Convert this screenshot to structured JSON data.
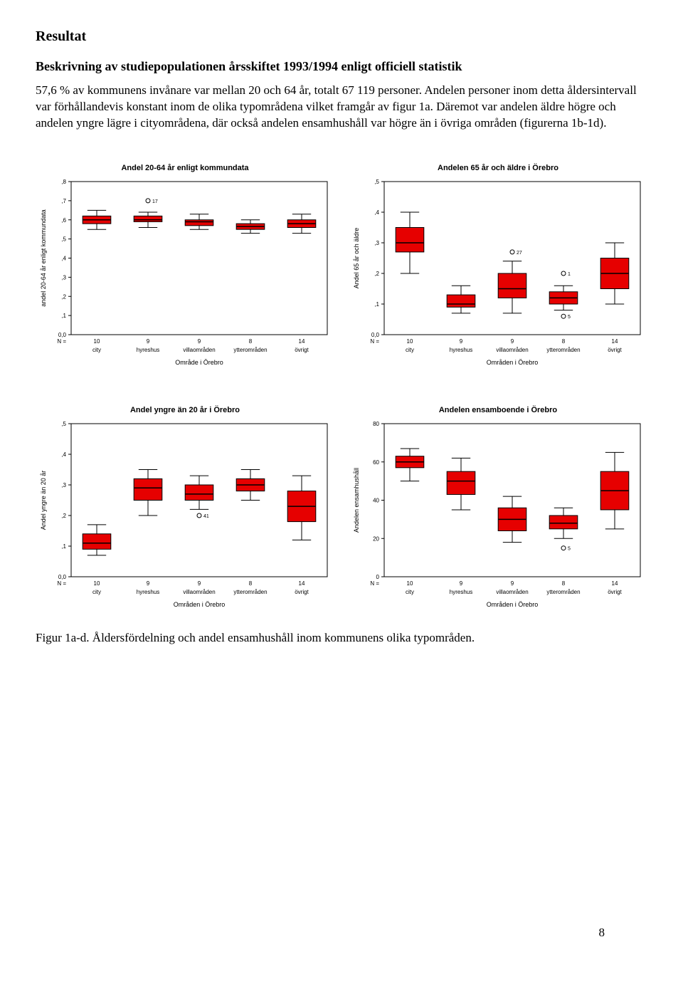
{
  "heading": "Resultat",
  "subheading": "Beskrivning av studiepopulationen årsskiftet 1993/1994 enligt officiell statistik",
  "para": "57,6 % av kommunens invånare var mellan 20 och 64 år, totalt 67 119 personer. Andelen personer inom detta åldersintervall var förhållandevis konstant inom de olika typområdena vilket framgår av figur 1a. Däremot var andelen äldre högre och andelen yngre lägre i cityområdena, där också andelen ensamhushåll var högre än i övriga områden (figurerna 1b-1d).",
  "figure_caption": "Figur 1a-d. Åldersfördelning och andel ensamhushåll inom kommunens olika typområden.",
  "page_number": "8",
  "chart_common": {
    "categories": [
      "city",
      "hyreshus",
      "villaområden",
      "ytterområden",
      "övrigt"
    ],
    "n_labels": [
      "10",
      "9",
      "9",
      "8",
      "14"
    ],
    "n_prefix": "N =",
    "box_fill": "#e60000",
    "box_stroke": "#000000",
    "median_color": "#000000",
    "whisker_color": "#000000",
    "outlier_stroke": "#000000",
    "outlier_fill": "none",
    "bg": "#ffffff",
    "axis_color": "#000000",
    "title_fontsize": 11,
    "label_fontsize": 9,
    "tick_fontsize": 8
  },
  "charts": [
    {
      "title": "Andel 20-64 år enligt kommundata",
      "x_axis_title": "Område i Örebro",
      "y_axis_title": "andel 20-64 år enligt kommundata",
      "y_min": 0.0,
      "y_max": 0.8,
      "y_ticks": [
        "0,0",
        ",1",
        ",2",
        ",3",
        ",4",
        ",5",
        ",6",
        ",7",
        ",8"
      ],
      "boxes": [
        {
          "min": 0.55,
          "q1": 0.58,
          "med": 0.6,
          "q3": 0.62,
          "max": 0.65
        },
        {
          "min": 0.56,
          "q1": 0.59,
          "med": 0.6,
          "q3": 0.62,
          "max": 0.64
        },
        {
          "min": 0.55,
          "q1": 0.57,
          "med": 0.59,
          "q3": 0.6,
          "max": 0.63
        },
        {
          "min": 0.53,
          "q1": 0.55,
          "med": 0.565,
          "q3": 0.58,
          "max": 0.6
        },
        {
          "min": 0.53,
          "q1": 0.56,
          "med": 0.58,
          "q3": 0.6,
          "max": 0.63
        }
      ],
      "outliers": [
        {
          "cat": 1,
          "y": 0.7,
          "label": "17"
        }
      ]
    },
    {
      "title": "Andelen 65 år och äldre i Örebro",
      "x_axis_title": "Områden i Örebro",
      "y_axis_title": "Andel 65 år och äldre",
      "y_min": 0.0,
      "y_max": 0.5,
      "y_ticks": [
        "0,0",
        ",1",
        ",2",
        ",3",
        ",4",
        ",5"
      ],
      "boxes": [
        {
          "min": 0.2,
          "q1": 0.27,
          "med": 0.3,
          "q3": 0.35,
          "max": 0.4
        },
        {
          "min": 0.07,
          "q1": 0.09,
          "med": 0.1,
          "q3": 0.13,
          "max": 0.16
        },
        {
          "min": 0.07,
          "q1": 0.12,
          "med": 0.15,
          "q3": 0.2,
          "max": 0.24
        },
        {
          "min": 0.08,
          "q1": 0.1,
          "med": 0.12,
          "q3": 0.14,
          "max": 0.16
        },
        {
          "min": 0.1,
          "q1": 0.15,
          "med": 0.2,
          "q3": 0.25,
          "max": 0.3
        }
      ],
      "outliers": [
        {
          "cat": 2,
          "y": 0.27,
          "label": "27"
        },
        {
          "cat": 3,
          "y": 0.2,
          "label": "1"
        },
        {
          "cat": 3,
          "y": 0.06,
          "label": "5"
        }
      ]
    },
    {
      "title": "Andel yngre än 20 år i Örebro",
      "x_axis_title": "Områden i Örebro",
      "y_axis_title": "Andel yngre än 20 år",
      "y_min": 0.0,
      "y_max": 0.5,
      "y_ticks": [
        "0,0",
        ",1",
        ",2",
        ",3",
        ",4",
        ",5"
      ],
      "boxes": [
        {
          "min": 0.07,
          "q1": 0.09,
          "med": 0.11,
          "q3": 0.14,
          "max": 0.17
        },
        {
          "min": 0.2,
          "q1": 0.25,
          "med": 0.29,
          "q3": 0.32,
          "max": 0.35
        },
        {
          "min": 0.22,
          "q1": 0.25,
          "med": 0.27,
          "q3": 0.3,
          "max": 0.33
        },
        {
          "min": 0.25,
          "q1": 0.28,
          "med": 0.3,
          "q3": 0.32,
          "max": 0.35
        },
        {
          "min": 0.12,
          "q1": 0.18,
          "med": 0.23,
          "q3": 0.28,
          "max": 0.33
        }
      ],
      "outliers": [
        {
          "cat": 2,
          "y": 0.2,
          "label": "41"
        }
      ]
    },
    {
      "title": "Andelen ensamboende i Örebro",
      "x_axis_title": "Områden i Örebro",
      "y_axis_title": "Andelen ensamhushåll",
      "y_min": 0,
      "y_max": 80,
      "y_ticks": [
        "0",
        "20",
        "40",
        "60",
        "80"
      ],
      "boxes": [
        {
          "min": 50,
          "q1": 57,
          "med": 60,
          "q3": 63,
          "max": 67
        },
        {
          "min": 35,
          "q1": 43,
          "med": 50,
          "q3": 55,
          "max": 62
        },
        {
          "min": 18,
          "q1": 24,
          "med": 30,
          "q3": 36,
          "max": 42
        },
        {
          "min": 20,
          "q1": 25,
          "med": 28,
          "q3": 32,
          "max": 36
        },
        {
          "min": 25,
          "q1": 35,
          "med": 45,
          "q3": 55,
          "max": 65
        }
      ],
      "outliers": [
        {
          "cat": 3,
          "y": 15,
          "label": "5"
        }
      ]
    }
  ]
}
